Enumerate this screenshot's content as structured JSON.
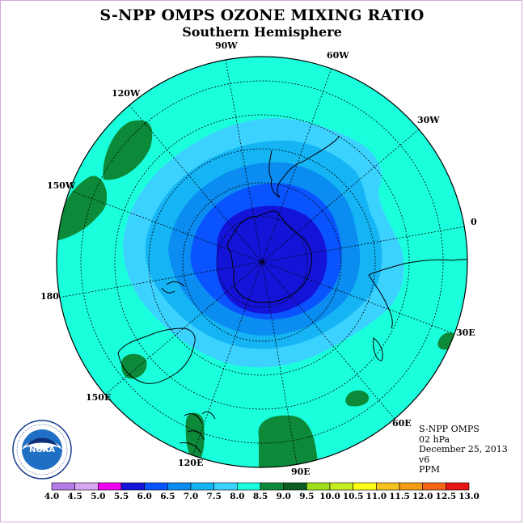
{
  "title": "S-NPP OMPS OZONE MIXING RATIO",
  "subtitle": "Southern Hemisphere",
  "longitude_labels": [
    "90W",
    "60W",
    "30W",
    "0",
    "30E",
    "60E",
    "90E",
    "120E",
    "150E",
    "180",
    "150W",
    "120W"
  ],
  "info": {
    "instrument": "S-NPP OMPS",
    "level": "02 hPa",
    "date": "December 25, 2013",
    "version": "v6",
    "units": "PPM"
  },
  "colorbar": {
    "labels": [
      "4.0",
      "4.5",
      "5.0",
      "5.5",
      "6.0",
      "6.5",
      "7.0",
      "7.5",
      "8.0",
      "8.5",
      "9.0",
      "9.5",
      "10.0",
      "10.5",
      "11.0",
      "11.5",
      "12.0",
      "12.5",
      "13.0"
    ],
    "colors": [
      "#b57be8",
      "#d8a6f2",
      "#f000f0",
      "#1414d8",
      "#0a54ff",
      "#0a8cf0",
      "#14b4f5",
      "#3cd2ff",
      "#1affdc",
      "#0c8a3a",
      "#0b5c22",
      "#a0e01a",
      "#c6ee20",
      "#fefe14",
      "#f4c21c",
      "#f49c14",
      "#f56614",
      "#e81414",
      "#8c5a3c"
    ]
  },
  "map_colors": {
    "background_level": "#1affdc",
    "level_7_5": "#3cd2ff",
    "level_7_0": "#14b4f5",
    "level_6_5": "#0a8cf0",
    "level_6_0": "#0a54ff",
    "level_5_5": "#1414d8",
    "level_8_5": "#0c8a3a"
  },
  "logo": {
    "text": "NOAA",
    "ring_text": "NATIONAL OCEANIC AND ATMOSPHERIC ADMINISTRATION · U.S. DEPARTMENT OF COMMERCE"
  }
}
